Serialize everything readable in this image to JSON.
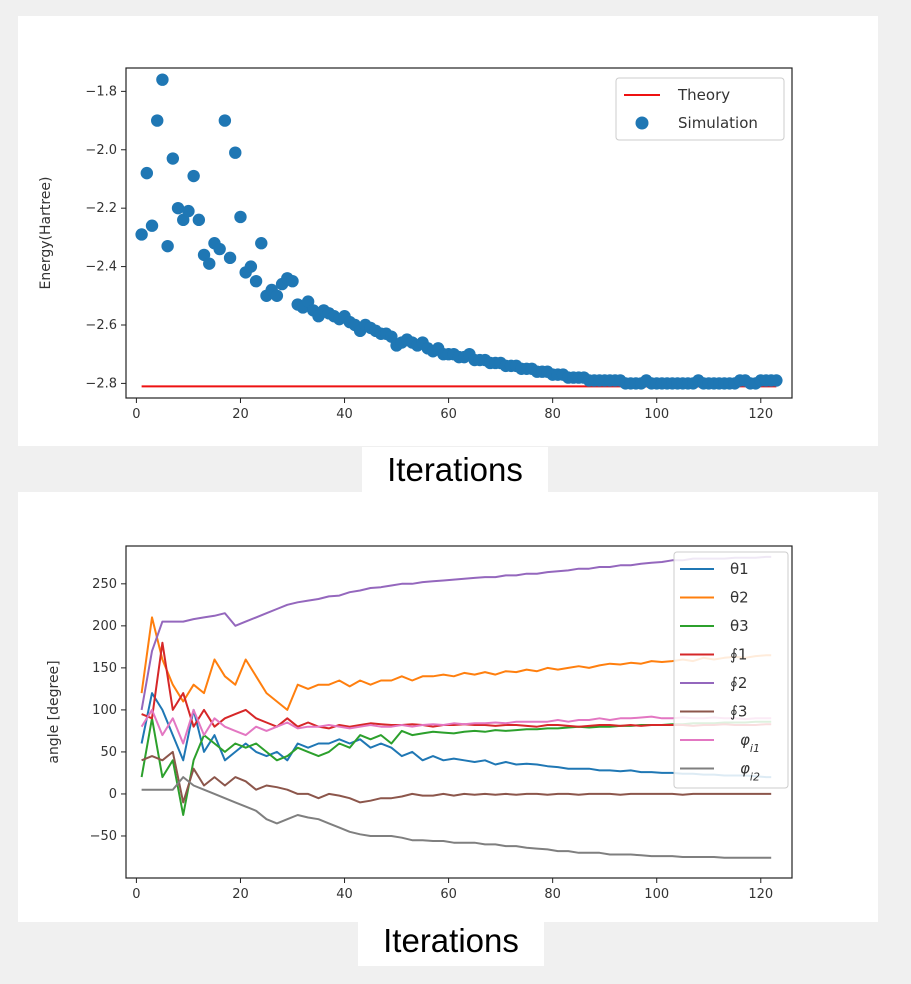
{
  "captions": {
    "top_xlabel": "Iterations",
    "bottom_xlabel": "Iterations"
  },
  "chart_data": [
    {
      "type": "scatter",
      "ylabel": "Energy(Hartree)",
      "xlim": [
        -2,
        126
      ],
      "ylim": [
        -2.85,
        -1.72
      ],
      "x_ticks": [
        0,
        20,
        40,
        60,
        80,
        100,
        120
      ],
      "y_ticks": [
        -2.8,
        -2.6,
        -2.4,
        -2.2,
        -2.0,
        -1.8
      ],
      "legend_position": "top-right",
      "colors": {
        "theory": "#ee1111",
        "simulation": "#1f77b4"
      },
      "series": [
        {
          "name": "Theory",
          "kind": "line",
          "x": [
            1,
            123
          ],
          "y": [
            -2.81,
            -2.81
          ]
        },
        {
          "name": "Simulation",
          "kind": "scatter",
          "x": [
            1,
            2,
            3,
            4,
            5,
            6,
            7,
            8,
            9,
            10,
            11,
            12,
            13,
            14,
            15,
            16,
            17,
            18,
            19,
            20,
            21,
            22,
            23,
            24,
            25,
            26,
            27,
            28,
            29,
            30,
            31,
            32,
            33,
            34,
            35,
            36,
            37,
            38,
            39,
            40,
            41,
            42,
            43,
            44,
            45,
            46,
            47,
            48,
            49,
            50,
            51,
            52,
            53,
            54,
            55,
            56,
            57,
            58,
            59,
            60,
            61,
            62,
            63,
            64,
            65,
            66,
            67,
            68,
            69,
            70,
            71,
            72,
            73,
            74,
            75,
            76,
            77,
            78,
            79,
            80,
            81,
            82,
            83,
            84,
            85,
            86,
            87,
            88,
            89,
            90,
            91,
            92,
            93,
            94,
            95,
            96,
            97,
            98,
            99,
            100,
            101,
            102,
            103,
            104,
            105,
            106,
            107,
            108,
            109,
            110,
            111,
            112,
            113,
            114,
            115,
            116,
            117,
            118,
            119,
            120,
            121,
            122,
            123
          ],
          "y": [
            -2.29,
            -2.08,
            -2.26,
            -1.9,
            -1.76,
            -2.33,
            -2.03,
            -2.2,
            -2.24,
            -2.21,
            -2.09,
            -2.24,
            -2.36,
            -2.39,
            -2.32,
            -2.34,
            -1.9,
            -2.37,
            -2.01,
            -2.23,
            -2.42,
            -2.4,
            -2.45,
            -2.32,
            -2.5,
            -2.48,
            -2.5,
            -2.46,
            -2.44,
            -2.45,
            -2.53,
            -2.54,
            -2.52,
            -2.55,
            -2.57,
            -2.55,
            -2.56,
            -2.57,
            -2.58,
            -2.57,
            -2.59,
            -2.6,
            -2.62,
            -2.6,
            -2.61,
            -2.62,
            -2.63,
            -2.63,
            -2.64,
            -2.67,
            -2.66,
            -2.65,
            -2.66,
            -2.67,
            -2.66,
            -2.68,
            -2.69,
            -2.68,
            -2.7,
            -2.7,
            -2.7,
            -2.71,
            -2.71,
            -2.7,
            -2.72,
            -2.72,
            -2.72,
            -2.73,
            -2.73,
            -2.73,
            -2.74,
            -2.74,
            -2.74,
            -2.75,
            -2.75,
            -2.75,
            -2.76,
            -2.76,
            -2.76,
            -2.77,
            -2.77,
            -2.77,
            -2.78,
            -2.78,
            -2.78,
            -2.78,
            -2.79,
            -2.79,
            -2.79,
            -2.79,
            -2.79,
            -2.79,
            -2.79,
            -2.8,
            -2.8,
            -2.8,
            -2.8,
            -2.79,
            -2.8,
            -2.8,
            -2.8,
            -2.8,
            -2.8,
            -2.8,
            -2.8,
            -2.8,
            -2.8,
            -2.79,
            -2.8,
            -2.8,
            -2.8,
            -2.8,
            -2.8,
            -2.8,
            -2.8,
            -2.79,
            -2.79,
            -2.8,
            -2.8,
            -2.79,
            -2.79,
            -2.79,
            -2.79
          ]
        }
      ]
    },
    {
      "type": "line",
      "ylabel": "angle      [degree]",
      "xlim": [
        -2,
        126
      ],
      "ylim": [
        -100,
        295
      ],
      "x_ticks": [
        0,
        20,
        40,
        60,
        80,
        100,
        120
      ],
      "y_ticks": [
        -50,
        0,
        50,
        100,
        150,
        200,
        250
      ],
      "legend_position": "top-right",
      "x": [
        1,
        3,
        5,
        7,
        9,
        11,
        13,
        15,
        17,
        19,
        21,
        23,
        25,
        27,
        29,
        31,
        33,
        35,
        37,
        39,
        41,
        43,
        45,
        47,
        49,
        51,
        53,
        55,
        57,
        59,
        61,
        63,
        65,
        67,
        69,
        71,
        73,
        75,
        77,
        79,
        81,
        83,
        85,
        87,
        89,
        91,
        93,
        95,
        97,
        99,
        101,
        103,
        105,
        107,
        109,
        111,
        113,
        115,
        117,
        119,
        121,
        122
      ],
      "series": [
        {
          "name": "θ1",
          "color": "#1f77b4",
          "values": [
            60,
            120,
            100,
            70,
            40,
            100,
            50,
            70,
            40,
            50,
            60,
            50,
            45,
            50,
            40,
            60,
            55,
            60,
            60,
            65,
            60,
            65,
            55,
            60,
            55,
            45,
            50,
            40,
            45,
            40,
            42,
            40,
            38,
            40,
            35,
            38,
            35,
            36,
            35,
            33,
            32,
            30,
            30,
            30,
            28,
            28,
            27,
            28,
            26,
            26,
            25,
            25,
            24,
            24,
            23,
            23,
            22,
            22,
            22,
            21,
            20,
            20
          ]
        },
        {
          "name": "θ2",
          "color": "#ff7f0e",
          "values": [
            120,
            210,
            160,
            130,
            110,
            130,
            120,
            160,
            140,
            130,
            160,
            140,
            120,
            110,
            100,
            130,
            125,
            130,
            130,
            135,
            128,
            135,
            130,
            135,
            135,
            140,
            135,
            140,
            140,
            142,
            140,
            144,
            142,
            145,
            142,
            146,
            145,
            148,
            146,
            150,
            148,
            150,
            152,
            150,
            153,
            155,
            154,
            156,
            155,
            158,
            157,
            158,
            160,
            158,
            162,
            160,
            162,
            163,
            162,
            164,
            165,
            165
          ]
        },
        {
          "name": "θ3",
          "color": "#2ca02c",
          "values": [
            20,
            90,
            20,
            40,
            -25,
            40,
            70,
            60,
            50,
            60,
            55,
            60,
            50,
            40,
            45,
            55,
            50,
            45,
            50,
            60,
            55,
            70,
            65,
            70,
            60,
            75,
            70,
            72,
            74,
            73,
            72,
            74,
            75,
            74,
            76,
            75,
            76,
            77,
            77,
            78,
            78,
            79,
            80,
            79,
            80,
            80,
            81,
            81,
            82,
            82,
            82,
            83,
            83,
            84,
            84,
            84,
            85,
            85,
            85,
            86,
            86,
            86
          ]
        },
        {
          "name": "∮1",
          "color": "#d62728",
          "values": [
            95,
            90,
            180,
            100,
            120,
            80,
            100,
            80,
            90,
            95,
            100,
            90,
            85,
            80,
            90,
            80,
            85,
            80,
            78,
            82,
            80,
            82,
            84,
            83,
            82,
            82,
            83,
            82,
            80,
            82,
            82,
            83,
            82,
            82,
            81,
            82,
            82,
            81,
            80,
            82,
            82,
            81,
            80,
            81,
            82,
            82,
            81,
            82,
            81,
            82,
            82,
            82,
            82,
            81,
            82,
            82,
            83,
            82,
            82,
            82,
            83,
            83
          ]
        },
        {
          "name": "∮2",
          "color": "#9467bd",
          "values": [
            100,
            170,
            205,
            205,
            205,
            208,
            210,
            212,
            215,
            200,
            205,
            210,
            215,
            220,
            225,
            228,
            230,
            232,
            235,
            236,
            240,
            242,
            245,
            246,
            248,
            250,
            250,
            252,
            253,
            254,
            255,
            256,
            257,
            258,
            258,
            260,
            260,
            262,
            262,
            264,
            265,
            266,
            268,
            268,
            270,
            270,
            272,
            272,
            274,
            275,
            276,
            278,
            278,
            280,
            280,
            280,
            280,
            281,
            281,
            281,
            282,
            282
          ]
        },
        {
          "name": "∮3",
          "color": "#8c564b",
          "values": [
            40,
            45,
            40,
            50,
            -10,
            30,
            10,
            20,
            10,
            20,
            15,
            5,
            10,
            8,
            5,
            0,
            0,
            -5,
            0,
            -2,
            -5,
            -10,
            -8,
            -5,
            -5,
            -3,
            0,
            -2,
            -2,
            0,
            -2,
            0,
            -1,
            0,
            -1,
            0,
            -1,
            0,
            0,
            -1,
            0,
            0,
            -1,
            0,
            0,
            0,
            -1,
            0,
            0,
            0,
            0,
            0,
            -1,
            0,
            0,
            0,
            0,
            0,
            0,
            0,
            0,
            0
          ]
        },
        {
          "name": "φ_i1",
          "color": "#e377c2",
          "values": [
            80,
            100,
            70,
            90,
            60,
            100,
            70,
            90,
            80,
            75,
            70,
            80,
            75,
            80,
            85,
            78,
            80,
            80,
            82,
            80,
            78,
            80,
            82,
            80,
            80,
            82,
            80,
            82,
            83,
            82,
            84,
            83,
            84,
            84,
            85,
            84,
            86,
            86,
            86,
            86,
            88,
            86,
            88,
            88,
            90,
            88,
            90,
            90,
            91,
            92,
            90,
            90,
            91,
            90,
            90,
            91,
            90,
            90,
            89,
            90,
            90,
            90
          ]
        },
        {
          "name": "φ_i2",
          "color": "#7f7f7f",
          "values": [
            5,
            5,
            5,
            5,
            20,
            10,
            5,
            0,
            -5,
            -10,
            -15,
            -20,
            -30,
            -35,
            -30,
            -25,
            -28,
            -30,
            -35,
            -40,
            -45,
            -48,
            -50,
            -50,
            -50,
            -52,
            -55,
            -55,
            -56,
            -56,
            -58,
            -58,
            -58,
            -60,
            -60,
            -62,
            -62,
            -64,
            -65,
            -66,
            -68,
            -68,
            -70,
            -70,
            -70,
            -72,
            -72,
            -72,
            -73,
            -74,
            -74,
            -74,
            -75,
            -75,
            -75,
            -75,
            -76,
            -76,
            -76,
            -76,
            -76,
            -76
          ]
        }
      ]
    }
  ]
}
